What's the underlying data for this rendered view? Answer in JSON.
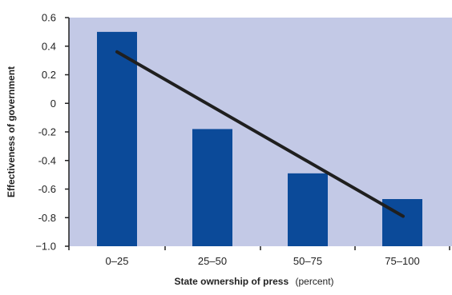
{
  "chart_data": {
    "type": "bar",
    "title": "",
    "xlabel": "State ownership of press",
    "xlabel_unit": "(percent)",
    "ylabel": "Effectiveness of government",
    "categories": [
      "0–25",
      "25–50",
      "50–75",
      "75–100"
    ],
    "values": [
      0.5,
      -0.18,
      -0.49,
      -0.67
    ],
    "ylim": [
      -1.0,
      0.6
    ],
    "yticks": [
      0.6,
      0.4,
      0.2,
      0,
      -0.2,
      -0.4,
      -0.6,
      -0.8,
      -1.0
    ],
    "ytick_labels": [
      "0.6",
      "0.4",
      "0.2",
      "0",
      "-0.2",
      "-0.4",
      "-0.6",
      "-0.8",
      "−1.0"
    ],
    "trendline": {
      "x_start": "0–25",
      "y_start": 0.36,
      "x_end": "75–100",
      "y_end": -0.79
    },
    "grid": false,
    "legend": "none"
  },
  "colors": {
    "plot_background": "#c3c9e6",
    "bar": "#0b4a99",
    "trendline": "#1f1f1f",
    "axis": "#222222"
  }
}
